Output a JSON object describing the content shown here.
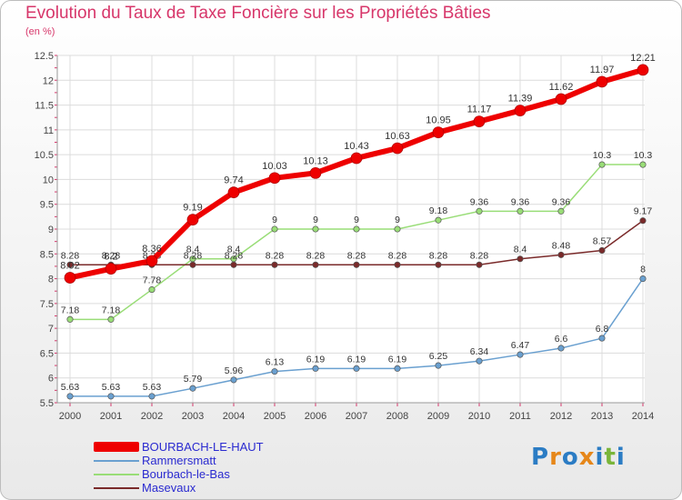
{
  "title": "Evolution du Taux de Taxe Foncière sur les Propriétés Bâties",
  "subtitle": "(en %)",
  "brand": {
    "text": "Proxiti",
    "letter_colors": [
      "#2b7cc4",
      "#e6871a",
      "#2b7cc4",
      "#e6871a",
      "#2b7cc4",
      "#7ab53a",
      "#2b7cc4"
    ]
  },
  "chart_data": {
    "type": "line",
    "title": "Evolution du Taux de Taxe Foncière sur les Propriétés Bâties",
    "ylabel": "(en %)",
    "xlabel": "",
    "x": [
      "2000",
      "2001",
      "2002",
      "2003",
      "2004",
      "2005",
      "2006",
      "2007",
      "2008",
      "2009",
      "2010",
      "2011",
      "2012",
      "2013",
      "2014"
    ],
    "y_ticks": [
      "5.5",
      "6",
      "6.5",
      "7",
      "7.5",
      "8",
      "8.5",
      "9",
      "9.5",
      "10",
      "10.5",
      "11",
      "11.5",
      "12",
      "12.5"
    ],
    "ylim": [
      5.5,
      12.5
    ],
    "grid": true,
    "legend_position": "bottom-left",
    "series": [
      {
        "name": "BOURBACH-LE-HAUT",
        "color": "#ee0000",
        "values": [
          8.02,
          8.2,
          8.36,
          9.19,
          9.74,
          10.03,
          10.13,
          10.43,
          10.63,
          10.95,
          11.17,
          11.39,
          11.62,
          11.97,
          12.21
        ],
        "labels": [
          "8.02",
          "8.2",
          "8.36",
          "9.19",
          "9.74",
          "10.03",
          "10.13",
          "10.43",
          "10.63",
          "10.95",
          "11.17",
          "11.39",
          "11.62",
          "11.97",
          "12.21"
        ]
      },
      {
        "name": "Rammersmatt",
        "color": "#6aa0d0",
        "values": [
          5.63,
          5.63,
          5.63,
          5.79,
          5.96,
          6.13,
          6.19,
          6.19,
          6.19,
          6.25,
          6.34,
          6.47,
          6.6,
          6.8,
          8
        ],
        "labels": [
          "5.63",
          "5.63",
          "5.63",
          "5.79",
          "5.96",
          "6.13",
          "6.19",
          "6.19",
          "6.19",
          "6.25",
          "6.34",
          "6.47",
          "6.6",
          "6.8",
          "8"
        ]
      },
      {
        "name": "Bourbach-le-Bas",
        "color": "#99dd77",
        "values": [
          7.18,
          7.18,
          7.78,
          8.4,
          8.4,
          9,
          9,
          9,
          9,
          9.18,
          9.36,
          9.36,
          9.36,
          10.3,
          10.3
        ],
        "labels": [
          "7.18",
          "7.18",
          "7.78",
          "8.4",
          "8.4",
          "9",
          "9",
          "9",
          "9",
          "9.18",
          "9.36",
          "9.36",
          "9.36",
          "10.3",
          "10.3"
        ]
      },
      {
        "name": "Masevaux",
        "color": "#7a2a2a",
        "values": [
          8.28,
          8.28,
          8.28,
          8.28,
          8.28,
          8.28,
          8.28,
          8.28,
          8.28,
          8.28,
          8.28,
          8.4,
          8.48,
          8.57,
          9.17
        ],
        "labels": [
          "8.28",
          "8.28",
          "8.28",
          "8.28",
          "8.28",
          "8.28",
          "8.28",
          "8.28",
          "8.28",
          "8.28",
          "8.28",
          "8.4",
          "8.48",
          "8.57",
          "9.17"
        ]
      }
    ]
  }
}
